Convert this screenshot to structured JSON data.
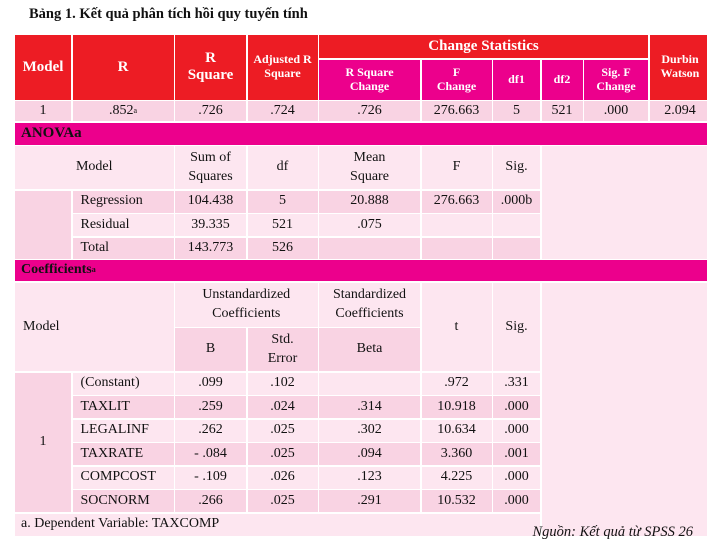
{
  "title": "Bảng 1. Kết quả phân tích hồi quy tuyến tính",
  "summary": {
    "headers": {
      "model": "Model",
      "r": "R",
      "r_square": "R Square",
      "adj": "Adjusted R Square",
      "change_stats": "Change Statistics",
      "r_sq_change": "R Square Change",
      "f_change": "F Change",
      "df1": "df1",
      "df2": "df2",
      "sig_f_change": "Sig. F Change",
      "durbin": "Durbin Watson"
    },
    "row": {
      "model": "1",
      "r": ".852",
      "r_sup": "a",
      "r_square": ".726",
      "adj": ".724",
      "r_sq_change": ".726",
      "f_change": "276.663",
      "df1": "5",
      "df2": "521",
      "sig_f_change": ".000",
      "durbin": "2.094"
    }
  },
  "anova": {
    "title": "ANOVAa",
    "headers": [
      "Model",
      "Sum of Squares",
      "df",
      "Mean Square",
      "F",
      "Sig."
    ],
    "rows": [
      [
        "Regression",
        "104.438",
        "5",
        "20.888",
        "276.663",
        ".000b"
      ],
      [
        "Residual",
        "39.335",
        "521",
        ".075",
        "",
        ""
      ],
      [
        "Total",
        "143.773",
        "526",
        "",
        "",
        ""
      ]
    ]
  },
  "coefficients": {
    "title": "Coefficients",
    "title_sup": "a",
    "headers": {
      "model": "Model",
      "unstd": "Unstandardized Coefficients",
      "std": "Standardized Coefficients",
      "b": "B",
      "std_error": "Std. Error",
      "beta": "Beta",
      "t": "t",
      "sig": "Sig."
    },
    "model": "1",
    "rows": [
      [
        "(Constant)",
        ".099",
        ".102",
        "",
        ".972",
        ".331"
      ],
      [
        "TAXLIT",
        ".259",
        ".024",
        ".314",
        "10.918",
        ".000"
      ],
      [
        "LEGALINF",
        ".262",
        ".025",
        ".302",
        "10.634",
        ".000"
      ],
      [
        "TAXRATE",
        "- .084",
        ".025",
        ".094",
        "3.360",
        ".001"
      ],
      [
        "COMPCOST",
        "- .109",
        ".026",
        ".123",
        "4.225",
        ".000"
      ],
      [
        "SOCNORM",
        ".266",
        ".025",
        ".291",
        "10.532",
        ".000"
      ]
    ],
    "footnote": "a. Dependent Variable: TAXCOMP"
  },
  "source": "Nguồn: Kết quả từ SPSS 26",
  "colors": {
    "header_red": "#ed1c24",
    "section_magenta": "#ec008c",
    "cell_light": "#fde6f0",
    "cell_dark": "#f9d3e3"
  }
}
